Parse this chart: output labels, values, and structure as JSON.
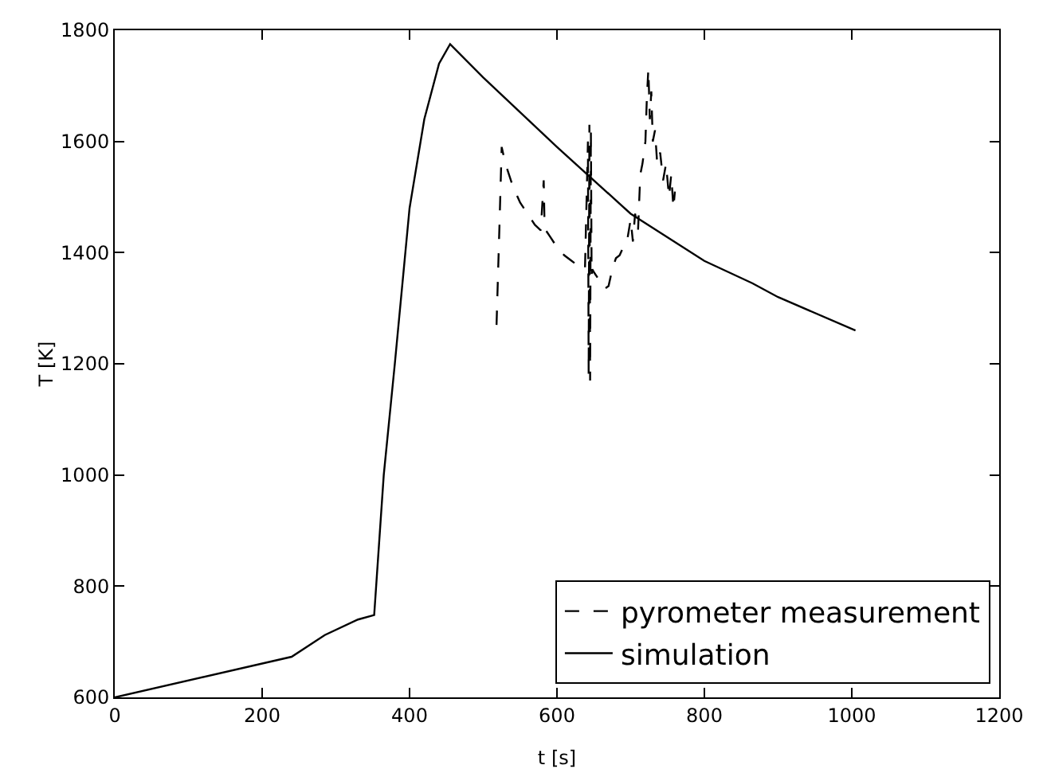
{
  "chart_data": {
    "type": "line",
    "xlabel": "t [s]",
    "ylabel": "T [K]",
    "xlim": [
      0,
      1200
    ],
    "xticks": [
      0,
      200,
      400,
      600,
      800,
      1000,
      1200
    ],
    "ylim": [
      600,
      1800
    ],
    "yticks": [
      600,
      800,
      1000,
      1200,
      1400,
      1600,
      1800
    ],
    "grid": false,
    "legend": "bottom right",
    "marker": "none",
    "series": [
      {
        "name": "pyrometer measurement",
        "color": "#000000",
        "line_style": "dashed",
        "x": [
          518,
          522,
          525,
          530,
          540,
          550,
          560,
          570,
          578,
          582,
          583,
          585,
          590,
          600,
          610,
          620,
          630,
          638,
          642,
          643,
          644,
          645,
          646,
          647,
          648,
          650,
          655,
          660,
          665,
          670,
          675,
          680,
          685,
          690,
          695,
          700,
          703,
          706,
          710,
          713,
          716,
          720,
          722,
          724,
          726,
          728,
          730,
          733,
          736,
          740,
          744,
          748,
          752,
          755,
          758,
          760
        ],
        "values": [
          1270,
          1450,
          1590,
          1560,
          1520,
          1490,
          1470,
          1450,
          1440,
          1530,
          1460,
          1440,
          1430,
          1410,
          1395,
          1385,
          1375,
          1370,
          1600,
          1180,
          1630,
          1170,
          1620,
          1360,
          1370,
          1365,
          1355,
          1345,
          1335,
          1340,
          1370,
          1390,
          1395,
          1410,
          1420,
          1460,
          1420,
          1470,
          1440,
          1540,
          1560,
          1600,
          1680,
          1730,
          1640,
          1690,
          1600,
          1620,
          1560,
          1580,
          1530,
          1560,
          1500,
          1540,
          1480,
          1510
        ]
      },
      {
        "name": "simulation",
        "color": "#000000",
        "line_style": "solid",
        "x": [
          0,
          240,
          285,
          330,
          352,
          365,
          380,
          400,
          420,
          440,
          455,
          500,
          600,
          700,
          800,
          865,
          900,
          1005
        ],
        "values": [
          600,
          673,
          712,
          740,
          748,
          1000,
          1200,
          1480,
          1640,
          1740,
          1775,
          1715,
          1590,
          1470,
          1385,
          1345,
          1320,
          1260
        ]
      }
    ]
  }
}
